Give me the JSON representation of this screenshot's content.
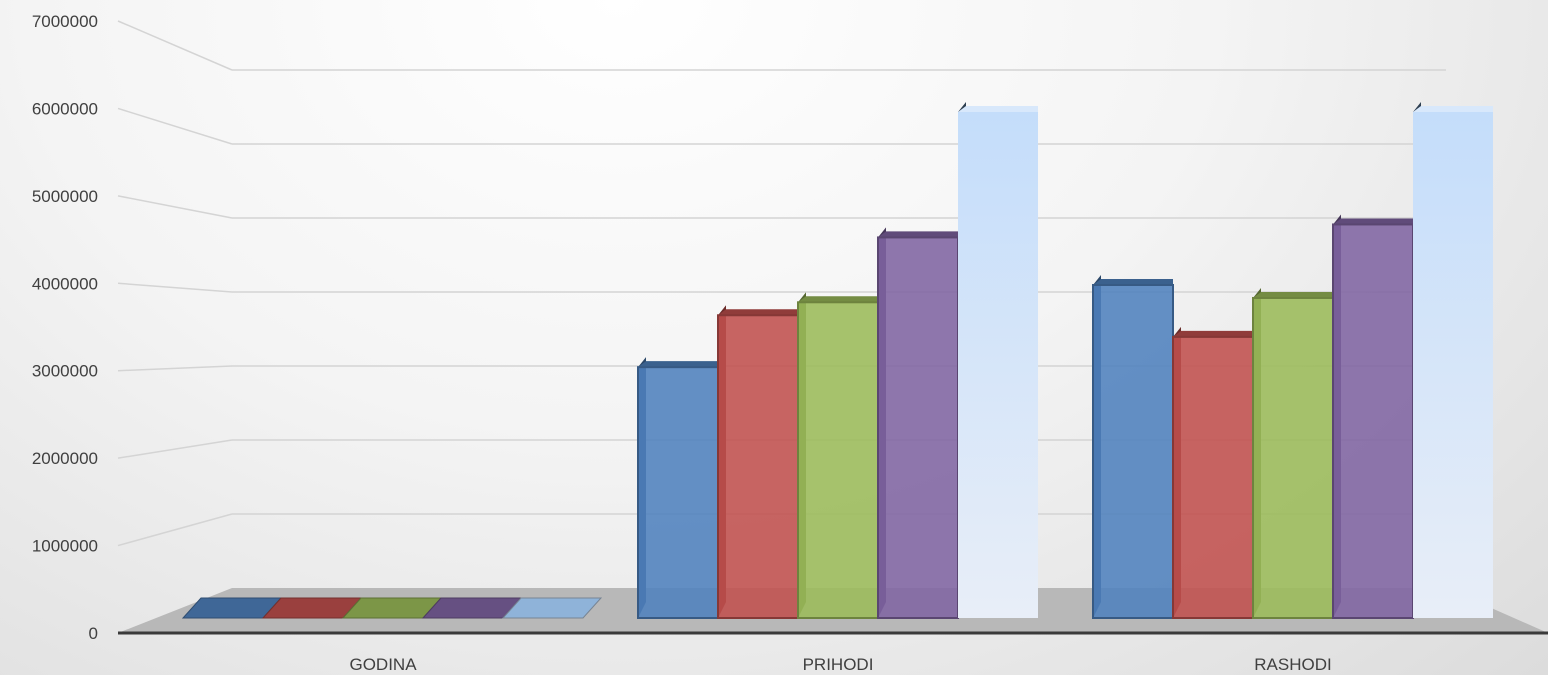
{
  "chart_data": {
    "type": "bar",
    "style": "3d-clustered",
    "categories": [
      "GODINA",
      "PRIHODI",
      "RASHODI"
    ],
    "series": [
      {
        "values": [
          0,
          2900000,
          3850000
        ],
        "color": "#4f81bd"
      },
      {
        "values": [
          0,
          3500000,
          3250000
        ],
        "color": "#c0504d"
      },
      {
        "values": [
          0,
          3650000,
          3700000
        ],
        "color": "#9bbb59"
      },
      {
        "values": [
          0,
          4400000,
          4550000
        ],
        "color": "#8064a2"
      },
      {
        "values": [
          0,
          5850000,
          5850000
        ],
        "color": "#c6dcf5"
      }
    ],
    "yticks": [
      "0",
      "1000000",
      "2000000",
      "3000000",
      "4000000",
      "5000000",
      "6000000",
      "7000000"
    ],
    "ylim": [
      0,
      7000000
    ],
    "grid": true,
    "legend": "none"
  }
}
